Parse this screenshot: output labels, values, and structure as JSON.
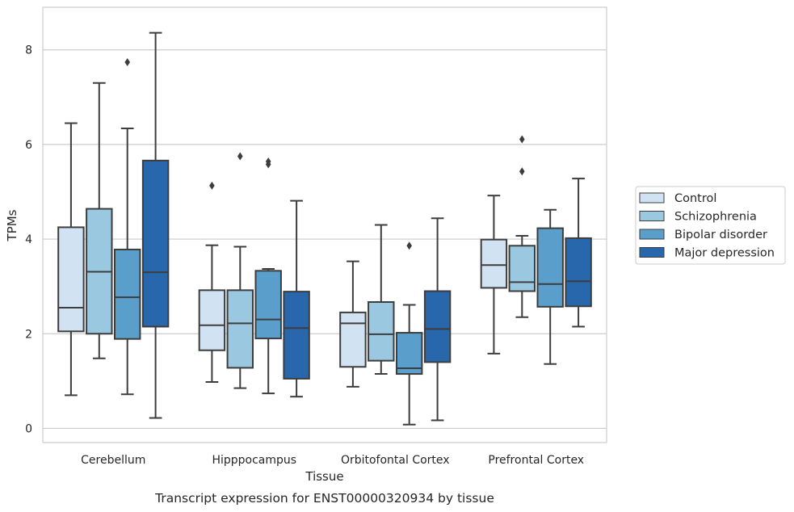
{
  "chart_data": {
    "type": "box",
    "caption": "Transcript expression for ENST00000320934 by tissue",
    "xlabel": "Tissue",
    "ylabel": "TPMs",
    "ylim": [
      -0.3,
      8.9
    ],
    "yticks": [
      0,
      2,
      4,
      6,
      8
    ],
    "grid": "horizontal",
    "legend_position": "right",
    "categories": [
      "Cerebellum",
      "Hipppocampus",
      "Orbitofontal Cortex",
      "Prefrontal Cortex"
    ],
    "series": [
      {
        "name": "Control",
        "color": "#d1e2f2",
        "boxes": [
          {
            "whislo": 0.7,
            "q1": 2.05,
            "med": 2.55,
            "q3": 4.25,
            "whishi": 6.45,
            "fliers": []
          },
          {
            "whislo": 0.98,
            "q1": 1.65,
            "med": 2.18,
            "q3": 2.92,
            "whishi": 3.87,
            "fliers": [
              5.13
            ]
          },
          {
            "whislo": 0.88,
            "q1": 1.3,
            "med": 2.22,
            "q3": 2.45,
            "whishi": 3.53,
            "fliers": []
          },
          {
            "whislo": 1.58,
            "q1": 2.97,
            "med": 3.45,
            "q3": 3.99,
            "whishi": 4.92,
            "fliers": []
          }
        ]
      },
      {
        "name": "Schizophrenia",
        "color": "#9ac8e0",
        "boxes": [
          {
            "whislo": 1.48,
            "q1": 2.0,
            "med": 3.31,
            "q3": 4.64,
            "whishi": 7.3,
            "fliers": []
          },
          {
            "whislo": 0.85,
            "q1": 1.28,
            "med": 2.22,
            "q3": 2.92,
            "whishi": 3.84,
            "fliers": [
              5.75
            ]
          },
          {
            "whislo": 1.15,
            "q1": 1.43,
            "med": 1.99,
            "q3": 2.67,
            "whishi": 4.3,
            "fliers": []
          },
          {
            "whislo": 2.35,
            "q1": 2.9,
            "med": 3.09,
            "q3": 3.86,
            "whishi": 4.07,
            "fliers": [
              5.43,
              6.11
            ]
          }
        ]
      },
      {
        "name": "Bipolar disorder",
        "color": "#5a9fcc",
        "boxes": [
          {
            "whislo": 0.72,
            "q1": 1.89,
            "med": 2.77,
            "q3": 3.78,
            "whishi": 6.34,
            "fliers": [
              7.74
            ]
          },
          {
            "whislo": 0.74,
            "q1": 1.9,
            "med": 2.3,
            "q3": 3.33,
            "whishi": 3.37,
            "fliers": [
              5.58,
              5.64
            ]
          },
          {
            "whislo": 0.08,
            "q1": 1.15,
            "med": 1.27,
            "q3": 2.02,
            "whishi": 2.61,
            "fliers": [
              3.86
            ]
          },
          {
            "whislo": 1.36,
            "q1": 2.57,
            "med": 3.05,
            "q3": 4.23,
            "whishi": 4.62,
            "fliers": []
          }
        ]
      },
      {
        "name": "Major depression",
        "color": "#2867ac",
        "boxes": [
          {
            "whislo": 0.22,
            "q1": 2.15,
            "med": 3.3,
            "q3": 5.66,
            "whishi": 8.36,
            "fliers": []
          },
          {
            "whislo": 0.67,
            "q1": 1.05,
            "med": 2.12,
            "q3": 2.89,
            "whishi": 4.81,
            "fliers": []
          },
          {
            "whislo": 0.17,
            "q1": 1.4,
            "med": 2.1,
            "q3": 2.9,
            "whishi": 4.44,
            "fliers": []
          },
          {
            "whislo": 2.15,
            "q1": 2.58,
            "med": 3.11,
            "q3": 4.02,
            "whishi": 5.28,
            "fliers": []
          }
        ]
      }
    ]
  }
}
